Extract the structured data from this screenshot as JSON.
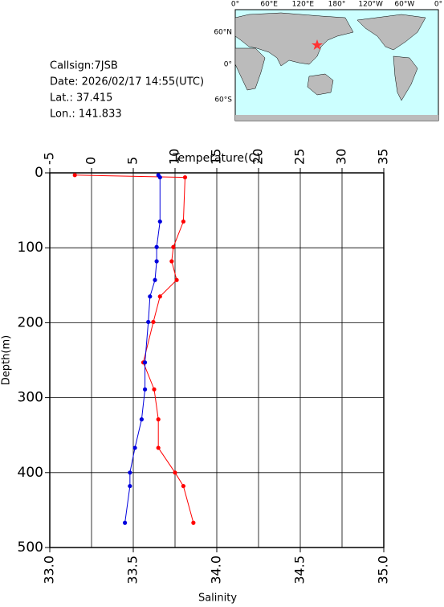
{
  "chart_data": {
    "type": "line",
    "info": [
      "Callsign:7JSB",
      "Date:  2026/02/17 14:55(UTC)",
      "Lat.:  37.415",
      "Lon.:  141.833"
    ],
    "map": {
      "lon_labels": [
        "0°",
        "60°E",
        "120°E",
        "180°",
        "120°W",
        "60°W",
        "0°"
      ],
      "lat_labels": [
        "60°N",
        "0°",
        "60°S"
      ]
    },
    "xlabel": "Temperature(C)",
    "x2label": "Salinity",
    "ylabel": "Depth(m)",
    "xlim": [
      -5,
      35
    ],
    "xticks": [
      -5,
      0,
      5,
      10,
      15,
      20,
      25,
      30,
      35
    ],
    "x2lim": [
      33.0,
      35.0
    ],
    "x2ticks": [
      {
        "value": 33.0,
        "label": "33.0"
      },
      {
        "value": 33.5,
        "label": "33.5"
      },
      {
        "value": 34.0,
        "label": "34.0"
      },
      {
        "value": 34.5,
        "label": "34.5"
      },
      {
        "value": 35.0,
        "label": "35.0"
      }
    ],
    "ylim": [
      0,
      500
    ],
    "yticks": [
      0,
      100,
      200,
      300,
      400,
      500
    ],
    "grid": true,
    "depth": [
      3,
      6,
      65,
      99,
      118,
      143,
      165,
      199,
      253,
      289,
      329,
      367,
      400,
      418,
      467
    ],
    "series": [
      {
        "name": "Temperature",
        "color": "#ff0000",
        "values": [
          -2.0,
          11.2,
          11.0,
          9.8,
          9.6,
          10.2,
          8.2,
          7.4,
          6.2,
          7.5,
          8.0,
          8.0,
          10.0,
          11.0,
          12.2
        ]
      },
      {
        "name": "Salinity",
        "color": "#0000dd",
        "axis": "x2",
        "values": [
          33.65,
          33.66,
          33.66,
          33.64,
          33.64,
          33.63,
          33.6,
          33.59,
          33.57,
          33.57,
          33.55,
          33.51,
          33.48,
          33.48,
          33.45
        ]
      }
    ]
  }
}
